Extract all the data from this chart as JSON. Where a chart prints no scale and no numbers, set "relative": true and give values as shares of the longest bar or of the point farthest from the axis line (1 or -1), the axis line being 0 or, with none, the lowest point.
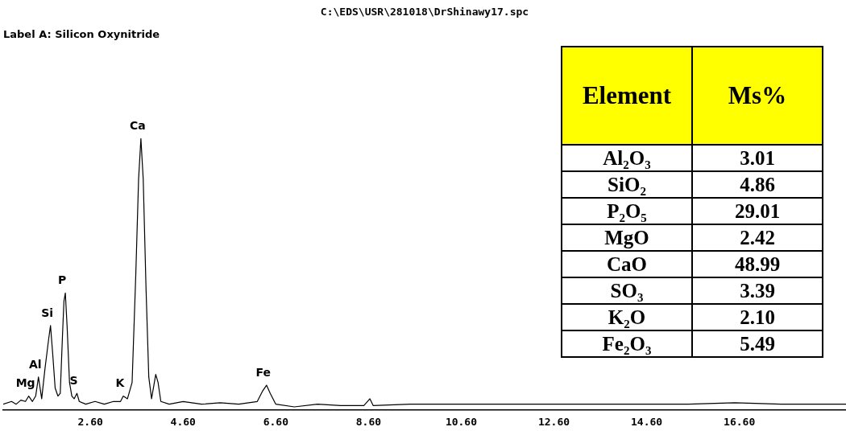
{
  "chart_data": [
    {
      "type": "line",
      "title": "C:\\EDS\\USR\\281018\\DrShinawy17.spc",
      "subtitle": "Label A: Silicon Oxynitride",
      "relative": true,
      "color": "#000000",
      "x": [
        0.72,
        0.9,
        1.0,
        1.1,
        1.2,
        1.27,
        1.35,
        1.42,
        1.48,
        1.55,
        1.62,
        1.7,
        1.74,
        1.79,
        1.84,
        1.9,
        1.95,
        2.0,
        2.03,
        2.06,
        2.1,
        2.15,
        2.2,
        2.25,
        2.31,
        2.36,
        2.5,
        2.7,
        2.9,
        3.1,
        3.25,
        3.31,
        3.4,
        3.5,
        3.58,
        3.64,
        3.69,
        3.74,
        3.8,
        3.86,
        3.92,
        4.01,
        4.06,
        4.12,
        4.3,
        4.6,
        5.0,
        5.4,
        5.8,
        6.2,
        6.32,
        6.4,
        6.48,
        6.6,
        7.0,
        7.5,
        8.0,
        8.5,
        8.63,
        8.7,
        9.5,
        10.5,
        11.5,
        12.5,
        13.5,
        14.5,
        15.5,
        16.5,
        17.5,
        18.9
      ],
      "values": [
        0.02,
        0.03,
        0.02,
        0.035,
        0.03,
        0.05,
        0.03,
        0.05,
        0.12,
        0.04,
        0.15,
        0.26,
        0.31,
        0.2,
        0.08,
        0.05,
        0.06,
        0.28,
        0.4,
        0.43,
        0.3,
        0.1,
        0.05,
        0.04,
        0.06,
        0.03,
        0.02,
        0.03,
        0.02,
        0.03,
        0.03,
        0.05,
        0.04,
        0.1,
        0.5,
        0.85,
        1,
        0.85,
        0.45,
        0.12,
        0.04,
        0.13,
        0.1,
        0.03,
        0.02,
        0.03,
        0.02,
        0.025,
        0.02,
        0.03,
        0.07,
        0.09,
        0.06,
        0.02,
        0.01,
        0.02,
        0.015,
        0.015,
        0.04,
        0.015,
        0.02,
        0.02,
        0.02,
        0.02,
        0.02,
        0.02,
        0.02,
        0.025,
        0.02,
        0.02
      ],
      "xlim": [
        0.72,
        18.9
      ],
      "xticks": [
        {
          "value": 2.6,
          "label": "2.60"
        },
        {
          "value": 4.6,
          "label": "4.60"
        },
        {
          "value": 6.6,
          "label": "6.60"
        },
        {
          "value": 8.6,
          "label": "8.60"
        },
        {
          "value": 10.6,
          "label": "10.60"
        },
        {
          "value": 12.6,
          "label": "12.60"
        },
        {
          "value": 14.6,
          "label": "14.60"
        },
        {
          "value": 16.6,
          "label": "16.60"
        }
      ],
      "annotations": [
        {
          "text": "Mg",
          "x": 1.27,
          "y": 0.05
        },
        {
          "text": "Al",
          "x": 1.48,
          "y": 0.12
        },
        {
          "text": "Si",
          "x": 1.74,
          "y": 0.31
        },
        {
          "text": "P",
          "x": 2.06,
          "y": 0.43
        },
        {
          "text": "S",
          "x": 2.31,
          "y": 0.06
        },
        {
          "text": "K",
          "x": 3.31,
          "y": 0.05
        },
        {
          "text": "Ca",
          "x": 3.69,
          "y": 1
        },
        {
          "text": "Fe",
          "x": 6.4,
          "y": 0.09
        }
      ]
    },
    {
      "type": "other",
      "xlabel": "Element",
      "ylabel": "Ms%",
      "categories": [
        "Al₂O₃",
        "SiO₂",
        "P₂O₅",
        "MgO",
        "CaO",
        "SO₃",
        "K₂O",
        "Fe₂O₃"
      ],
      "value_labels": [
        "3.01",
        "4.86",
        "29.01",
        "2.42",
        "48.99",
        "3.39",
        "2.10",
        "5.49"
      ],
      "color": "#ffff00"
    }
  ]
}
